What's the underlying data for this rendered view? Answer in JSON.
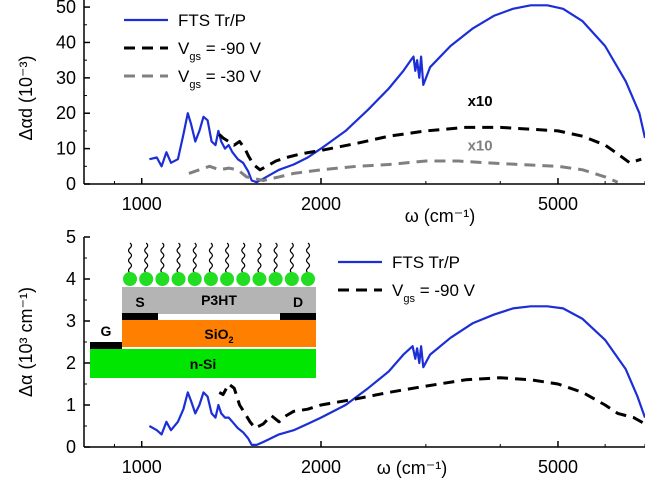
{
  "chart_data": [
    {
      "type": "line",
      "panel": "top",
      "ylabel": "Δαd (10⁻³)",
      "xlabel": "ω (cm⁻¹)",
      "xscale": "log",
      "xlim": [
        800,
        7000
      ],
      "ylim": [
        0,
        52
      ],
      "xticks": [
        1000,
        2000,
        5000
      ],
      "yticks": [
        0,
        10,
        20,
        30,
        40,
        50
      ],
      "grid": false,
      "legend_position": "top-left",
      "legend": [
        {
          "base": "FTS Tr/P",
          "sub": "",
          "rest": "",
          "style": "solid",
          "color": "#1c2fd6"
        },
        {
          "base": "V",
          "sub": "gs",
          "rest": " = -90 V",
          "style": "dashed",
          "color": "#000000"
        },
        {
          "base": "V",
          "sub": "gs",
          "rest": " = -30 V",
          "style": "dashed",
          "color": "#808080"
        }
      ],
      "annotations": [
        {
          "text": "x10",
          "x": 3700,
          "y": 22,
          "color": "#000000"
        },
        {
          "text": "x10",
          "x": 3700,
          "y": 9.5,
          "color": "#808080"
        }
      ],
      "series": [
        {
          "name": "FTS Tr/P",
          "style": "solid",
          "color": "#1c2fd6",
          "points": [
            [
              1030,
              7
            ],
            [
              1060,
              7.5
            ],
            [
              1080,
              5
            ],
            [
              1100,
              9
            ],
            [
              1120,
              6
            ],
            [
              1150,
              7
            ],
            [
              1175,
              14
            ],
            [
              1195,
              20
            ],
            [
              1210,
              17
            ],
            [
              1230,
              12
            ],
            [
              1250,
              15
            ],
            [
              1270,
              19
            ],
            [
              1290,
              18
            ],
            [
              1310,
              12
            ],
            [
              1330,
              11
            ],
            [
              1345,
              15
            ],
            [
              1360,
              12
            ],
            [
              1380,
              10
            ],
            [
              1400,
              11
            ],
            [
              1420,
              9
            ],
            [
              1450,
              7
            ],
            [
              1480,
              6
            ],
            [
              1510,
              3.5
            ],
            [
              1530,
              1
            ],
            [
              1560,
              0.5
            ],
            [
              1600,
              1.5
            ],
            [
              1700,
              4
            ],
            [
              1800,
              5.5
            ],
            [
              1900,
              7.5
            ],
            [
              2000,
              10
            ],
            [
              2200,
              15
            ],
            [
              2400,
              21
            ],
            [
              2600,
              27
            ],
            [
              2750,
              32
            ],
            [
              2830,
              35
            ],
            [
              2860,
              36
            ],
            [
              2880,
              32
            ],
            [
              2900,
              35
            ],
            [
              2925,
              30
            ],
            [
              2945,
              36
            ],
            [
              2970,
              28
            ],
            [
              3050,
              33
            ],
            [
              3300,
              39
            ],
            [
              3600,
              44
            ],
            [
              3900,
              47.5
            ],
            [
              4200,
              49.5
            ],
            [
              4500,
              50.5
            ],
            [
              4800,
              50.5
            ],
            [
              5100,
              49.5
            ],
            [
              5500,
              46
            ],
            [
              6000,
              39
            ],
            [
              6500,
              29
            ],
            [
              6850,
              20
            ],
            [
              7000,
              13
            ]
          ]
        },
        {
          "name": "Vgs = -90 V",
          "style": "dashed",
          "color": "#000000",
          "points": [
            [
              1350,
              14
            ],
            [
              1370,
              13
            ],
            [
              1400,
              12
            ],
            [
              1430,
              11
            ],
            [
              1460,
              12
            ],
            [
              1490,
              10
            ],
            [
              1510,
              8
            ],
            [
              1540,
              5.5
            ],
            [
              1580,
              4
            ],
            [
              1620,
              5
            ],
            [
              1680,
              6.5
            ],
            [
              1750,
              7.5
            ],
            [
              1850,
              8.5
            ],
            [
              2000,
              9.5
            ],
            [
              2300,
              11.5
            ],
            [
              2600,
              13.5
            ],
            [
              3000,
              15
            ],
            [
              3500,
              16
            ],
            [
              4000,
              16
            ],
            [
              4500,
              15.5
            ],
            [
              5000,
              15
            ],
            [
              5500,
              13.5
            ],
            [
              6000,
              11
            ],
            [
              6300,
              8.5
            ],
            [
              6600,
              6
            ],
            [
              6900,
              7
            ]
          ]
        },
        {
          "name": "Vgs = -30 V",
          "style": "dashed",
          "color": "#808080",
          "points": [
            [
              1200,
              3
            ],
            [
              1250,
              4
            ],
            [
              1300,
              5
            ],
            [
              1350,
              4
            ],
            [
              1400,
              4.5
            ],
            [
              1450,
              4
            ],
            [
              1500,
              2
            ],
            [
              1550,
              1.5
            ],
            [
              1600,
              1
            ],
            [
              1700,
              2
            ],
            [
              1800,
              3
            ],
            [
              2000,
              4
            ],
            [
              2300,
              5
            ],
            [
              2600,
              5.5
            ],
            [
              3000,
              6.5
            ],
            [
              3400,
              6.5
            ],
            [
              3800,
              6
            ],
            [
              4300,
              5.5
            ],
            [
              5000,
              5
            ],
            [
              5500,
              4
            ],
            [
              6000,
              2
            ],
            [
              6300,
              0.5
            ]
          ]
        }
      ]
    },
    {
      "type": "line",
      "panel": "bottom",
      "ylabel": "Δα (10³ cm⁻¹)",
      "xlabel": "ω (cm⁻¹)",
      "xscale": "log",
      "xlim": [
        800,
        7000
      ],
      "ylim": [
        0,
        5
      ],
      "xticks": [
        1000,
        2000,
        5000
      ],
      "yticks": [
        0,
        1,
        2,
        3,
        4,
        5
      ],
      "grid": false,
      "legend_position": "top-right",
      "legend": [
        {
          "base": "FTS Tr/P",
          "sub": "",
          "rest": "",
          "style": "solid",
          "color": "#1c2fd6"
        },
        {
          "base": "V",
          "sub": "gs",
          "rest": " = -90 V",
          "style": "dashed",
          "color": "#000000"
        }
      ],
      "series": [
        {
          "name": "FTS Tr/P",
          "style": "solid",
          "color": "#1c2fd6",
          "points": [
            [
              1030,
              0.5
            ],
            [
              1060,
              0.4
            ],
            [
              1080,
              0.3
            ],
            [
              1100,
              0.6
            ],
            [
              1120,
              0.4
            ],
            [
              1150,
              0.6
            ],
            [
              1175,
              0.9
            ],
            [
              1195,
              1.3
            ],
            [
              1210,
              1.1
            ],
            [
              1230,
              0.8
            ],
            [
              1250,
              1.0
            ],
            [
              1270,
              1.3
            ],
            [
              1290,
              1.2
            ],
            [
              1310,
              0.8
            ],
            [
              1330,
              0.7
            ],
            [
              1345,
              1.0
            ],
            [
              1360,
              0.8
            ],
            [
              1380,
              0.7
            ],
            [
              1400,
              0.7
            ],
            [
              1420,
              0.6
            ],
            [
              1450,
              0.45
            ],
            [
              1480,
              0.35
            ],
            [
              1510,
              0.2
            ],
            [
              1530,
              0.05
            ],
            [
              1560,
              0.05
            ],
            [
              1600,
              0.12
            ],
            [
              1700,
              0.3
            ],
            [
              1800,
              0.4
            ],
            [
              1900,
              0.55
            ],
            [
              2000,
              0.7
            ],
            [
              2200,
              1.0
            ],
            [
              2400,
              1.4
            ],
            [
              2600,
              1.8
            ],
            [
              2750,
              2.2
            ],
            [
              2850,
              2.4
            ],
            [
              2880,
              2.1
            ],
            [
              2900,
              2.35
            ],
            [
              2925,
              2.0
            ],
            [
              2945,
              2.4
            ],
            [
              2970,
              1.9
            ],
            [
              3050,
              2.2
            ],
            [
              3300,
              2.6
            ],
            [
              3600,
              2.95
            ],
            [
              3900,
              3.15
            ],
            [
              4200,
              3.3
            ],
            [
              4500,
              3.35
            ],
            [
              4800,
              3.35
            ],
            [
              5100,
              3.3
            ],
            [
              5500,
              3.05
            ],
            [
              6000,
              2.55
            ],
            [
              6500,
              1.85
            ],
            [
              6800,
              1.2
            ],
            [
              7000,
              0.7
            ]
          ]
        },
        {
          "name": "Vgs = -90 V",
          "style": "dashed",
          "color": "#000000",
          "points": [
            [
              1350,
              1.3
            ],
            [
              1370,
              1.25
            ],
            [
              1400,
              1.5
            ],
            [
              1430,
              1.4
            ],
            [
              1460,
              1.0
            ],
            [
              1490,
              0.8
            ],
            [
              1520,
              0.6
            ],
            [
              1550,
              0.45
            ],
            [
              1600,
              0.55
            ],
            [
              1650,
              0.75
            ],
            [
              1700,
              0.6
            ],
            [
              1750,
              0.75
            ],
            [
              1800,
              0.85
            ],
            [
              1900,
              0.9
            ],
            [
              2000,
              1.0
            ],
            [
              2300,
              1.15
            ],
            [
              2600,
              1.3
            ],
            [
              3000,
              1.45
            ],
            [
              3500,
              1.6
            ],
            [
              4000,
              1.65
            ],
            [
              4500,
              1.6
            ],
            [
              5000,
              1.5
            ],
            [
              5500,
              1.3
            ],
            [
              6000,
              1.0
            ],
            [
              6300,
              0.8
            ],
            [
              6700,
              0.7
            ],
            [
              7000,
              0.55
            ]
          ]
        }
      ]
    }
  ],
  "inset": {
    "molecules": 12,
    "colors": {
      "molecule": "#22dd22",
      "chain": "#000000",
      "p3ht": "#b4b4b4",
      "sio2": "#ff7f00",
      "nsi": "#00e600",
      "electrode": "#000000"
    },
    "labels": {
      "s": "S",
      "d": "D",
      "g": "G",
      "p3ht": "P3HT",
      "sio2_base": "SiO",
      "sio2_sub": "2",
      "nsi": "n-Si"
    }
  }
}
